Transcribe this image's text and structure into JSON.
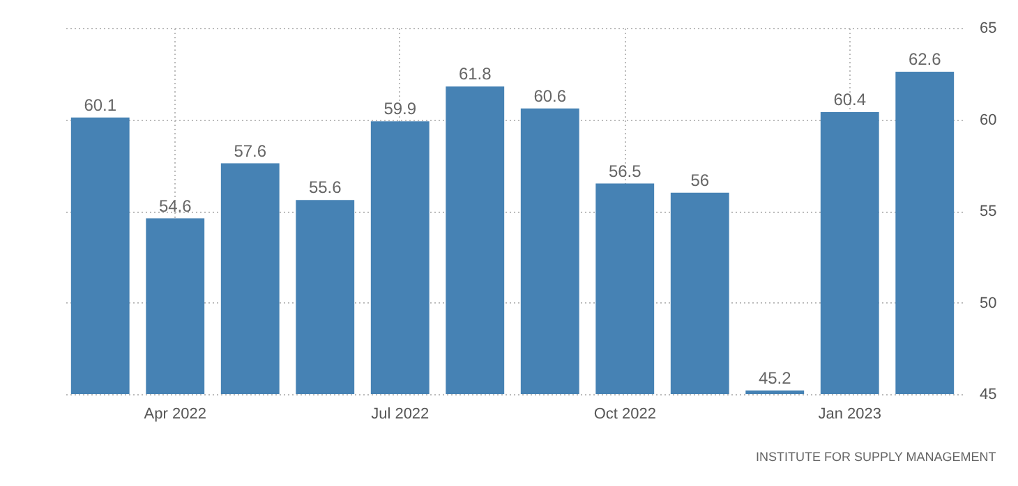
{
  "chart_data": {
    "type": "bar",
    "categories": [
      null,
      "Apr 2022",
      null,
      null,
      "Jul 2022",
      null,
      null,
      "Oct 2022",
      null,
      null,
      "Jan 2023",
      null
    ],
    "values": [
      60.1,
      54.6,
      57.6,
      55.6,
      59.9,
      61.8,
      60.6,
      56.5,
      56,
      45.2,
      60.4,
      62.6
    ],
    "color": "#4682b4",
    "ylim": [
      45,
      65
    ],
    "yticks": [
      45,
      50,
      55,
      60,
      65
    ],
    "grid": true,
    "data_labels": true,
    "annotations": [
      "INSTITUTE FOR SUPPLY MANAGEMENT"
    ]
  }
}
